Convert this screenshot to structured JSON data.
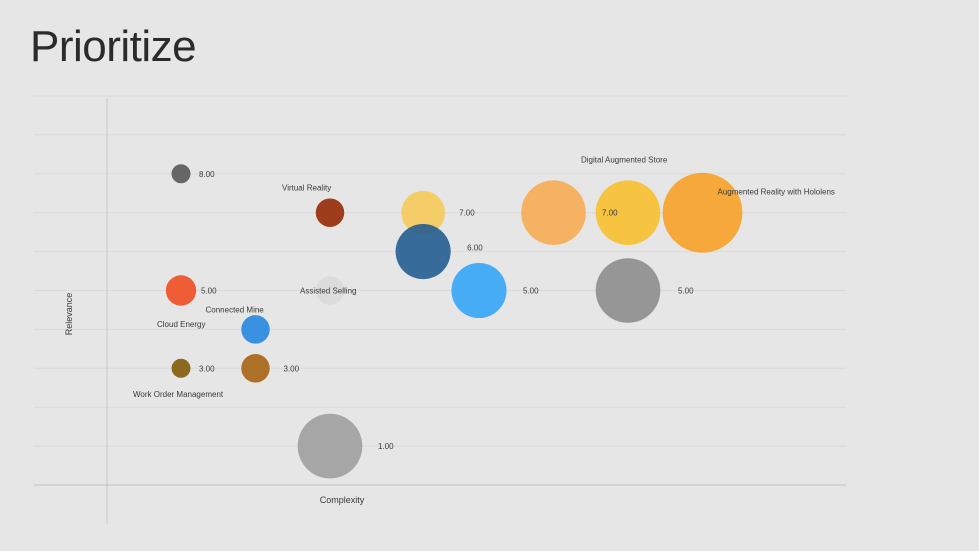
{
  "page": {
    "title": "Prioritize"
  },
  "chart_data": {
    "type": "scatter",
    "xlabel": "Complexity",
    "ylabel": "Relevance",
    "ylim": [
      0,
      10
    ],
    "grid": true,
    "bubbles": [
      {
        "value": 8,
        "value_label": "8.00",
        "category": "",
        "x": 1,
        "y": 8,
        "size": 1,
        "color": "#666666",
        "opacity": 1
      },
      {
        "value": 7,
        "value_label": "",
        "category": "Virtual Reality",
        "x": 3,
        "y": 7,
        "size": 1.5,
        "color": "#9e3d1c",
        "opacity": 1
      },
      {
        "value": 7,
        "value_label": "7.00",
        "category": "",
        "x": 4.25,
        "y": 7,
        "size": 2.3,
        "color": "#f7c548",
        "opacity": 0.8
      },
      {
        "value": 6,
        "value_label": "6.00",
        "category": "",
        "x": 4.25,
        "y": 6,
        "size": 2.9,
        "color": "#1f5a8f",
        "opacity": 0.88
      },
      {
        "value": 5,
        "value_label": "5.00",
        "category": "",
        "x": 1,
        "y": 5,
        "size": 1.6,
        "color": "#f04e23",
        "opacity": 0.9
      },
      {
        "value": 5,
        "value_label": "",
        "category": "Assisted Selling",
        "x": 3,
        "y": 5,
        "size": 1.5,
        "color": "#dcdcdc",
        "opacity": 1
      },
      {
        "value": 4,
        "value_label": "",
        "category": "Connected Mine",
        "x": 2,
        "y": 4,
        "size": 1.5,
        "color": "#2e8de0",
        "opacity": 0.95
      },
      {
        "value": 3,
        "value_label": "3.00",
        "category": "",
        "x": 1,
        "y": 3,
        "size": 1,
        "color": "#8b6a1e",
        "opacity": 1
      },
      {
        "value": 3,
        "value_label": "3.00",
        "category": "",
        "x": 2,
        "y": 3,
        "size": 1.5,
        "color": "#a9691f",
        "opacity": 0.95
      },
      {
        "value": 5,
        "value_label": "5.00",
        "category": "",
        "x": 5,
        "y": 5,
        "size": 2.9,
        "color": "#3aa7f7",
        "opacity": 0.92
      },
      {
        "value": 7,
        "value_label": "",
        "category": "",
        "x": 6,
        "y": 7,
        "size": 3.4,
        "color": "#f7a84a",
        "opacity": 0.85
      },
      {
        "value": 7,
        "value_label": "7.00",
        "category": "Digital Augmented Store",
        "x": 7,
        "y": 7,
        "size": 3.4,
        "color": "#f8bd23",
        "opacity": 0.85
      },
      {
        "value": 7,
        "value_label": "",
        "category": "Augmented Reality with Hololens",
        "x": 8,
        "y": 7,
        "size": 4.2,
        "color": "#f89c1c",
        "opacity": 0.85
      },
      {
        "value": 5,
        "value_label": "5.00",
        "category": "",
        "x": 7,
        "y": 5,
        "size": 3.4,
        "color": "#8f8f8f",
        "opacity": 0.92
      },
      {
        "value": 1,
        "value_label": "1.00",
        "category": "",
        "x": 3,
        "y": 1,
        "size": 3.4,
        "color": "#9e9e9e",
        "opacity": 0.9
      }
    ],
    "extra_labels": {
      "cloud_energy": "Cloud Energy",
      "work_order": "Work Order Management"
    }
  }
}
